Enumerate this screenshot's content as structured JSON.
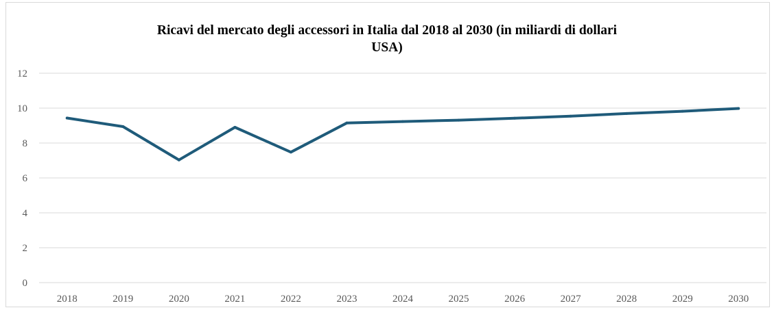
{
  "chart_data": {
    "type": "line",
    "title_lines": [
      "Ricavi del mercato degli accessori in Italia dal 2018 al 2030 (in miliardi di dollari",
      "USA)"
    ],
    "xlabel": "",
    "ylabel": "",
    "categories": [
      "2018",
      "2019",
      "2020",
      "2021",
      "2022",
      "2023",
      "2024",
      "2025",
      "2026",
      "2027",
      "2028",
      "2029",
      "2030"
    ],
    "series": [
      {
        "values": [
          9.43,
          8.94,
          7.03,
          8.9,
          7.48,
          9.15,
          9.23,
          9.31,
          9.42,
          9.54,
          9.69,
          9.82,
          9.98
        ],
        "color": "#1f5b7a"
      }
    ],
    "ylim": [
      0,
      12
    ],
    "yticks": [
      0,
      2,
      4,
      6,
      8,
      10,
      12
    ],
    "grid": "horizontal",
    "legend": "none",
    "gridline_color": "#d9d9d9",
    "axis_label_color": "#595959"
  }
}
